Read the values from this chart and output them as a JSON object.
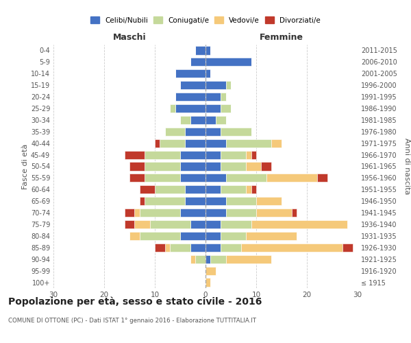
{
  "age_groups": [
    "100+",
    "95-99",
    "90-94",
    "85-89",
    "80-84",
    "75-79",
    "70-74",
    "65-69",
    "60-64",
    "55-59",
    "50-54",
    "45-49",
    "40-44",
    "35-39",
    "30-34",
    "25-29",
    "20-24",
    "15-19",
    "10-14",
    "5-9",
    "0-4"
  ],
  "birth_years": [
    "≤ 1915",
    "1916-1920",
    "1921-1925",
    "1926-1930",
    "1931-1935",
    "1936-1940",
    "1941-1945",
    "1946-1950",
    "1951-1955",
    "1956-1960",
    "1961-1965",
    "1966-1970",
    "1971-1975",
    "1976-1980",
    "1981-1985",
    "1986-1990",
    "1991-1995",
    "1996-2000",
    "2001-2005",
    "2006-2010",
    "2011-2015"
  ],
  "male_celibi": [
    0,
    0,
    0,
    3,
    5,
    3,
    5,
    4,
    4,
    5,
    5,
    5,
    4,
    4,
    3,
    6,
    6,
    5,
    6,
    3,
    2
  ],
  "male_coniugati": [
    0,
    0,
    2,
    4,
    8,
    8,
    8,
    8,
    6,
    7,
    7,
    7,
    5,
    4,
    2,
    1,
    0,
    0,
    0,
    0,
    0
  ],
  "male_vedovi": [
    0,
    0,
    1,
    1,
    2,
    3,
    1,
    0,
    0,
    0,
    0,
    0,
    0,
    0,
    0,
    0,
    0,
    0,
    0,
    0,
    0
  ],
  "male_divorziati": [
    0,
    0,
    0,
    2,
    0,
    2,
    2,
    1,
    3,
    3,
    3,
    4,
    1,
    0,
    0,
    0,
    0,
    0,
    0,
    0,
    0
  ],
  "female_celibi": [
    0,
    0,
    1,
    3,
    3,
    3,
    4,
    4,
    3,
    4,
    3,
    3,
    4,
    3,
    2,
    3,
    3,
    4,
    1,
    9,
    1
  ],
  "female_coniugati": [
    0,
    0,
    3,
    4,
    5,
    6,
    6,
    6,
    5,
    8,
    5,
    5,
    9,
    6,
    2,
    2,
    1,
    1,
    0,
    0,
    0
  ],
  "female_vedovi": [
    1,
    2,
    9,
    20,
    10,
    19,
    7,
    5,
    1,
    10,
    3,
    1,
    2,
    0,
    0,
    0,
    0,
    0,
    0,
    0,
    0
  ],
  "female_divorziati": [
    0,
    0,
    0,
    2,
    0,
    0,
    1,
    0,
    1,
    2,
    2,
    1,
    0,
    0,
    0,
    0,
    0,
    0,
    0,
    0,
    0
  ],
  "color_celibi": "#4472c4",
  "color_coniugati": "#c5d99b",
  "color_vedovi": "#f5c97a",
  "color_divorziati": "#c0392b",
  "xlim": 30,
  "title": "Popolazione per età, sesso e stato civile - 2016",
  "subtitle": "COMUNE DI OTTONE (PC) - Dati ISTAT 1° gennaio 2016 - Elaborazione TUTTITALIA.IT",
  "ylabel_left": "Fasce di età",
  "ylabel_right": "Anni di nascita",
  "xlabel_left": "Maschi",
  "xlabel_right": "Femmine",
  "bg_color": "#ffffff",
  "grid_color": "#cccccc",
  "text_color": "#555555",
  "title_color": "#222222"
}
